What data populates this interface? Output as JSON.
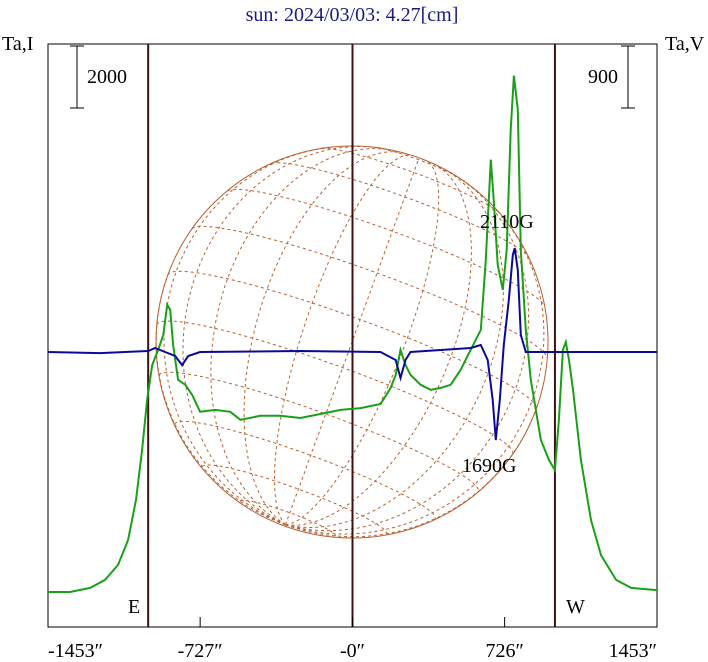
{
  "chart_data": {
    "type": "line",
    "title": "sun: 2024/03/03: 4.27[cm]",
    "y_label": "Ta,I",
    "y2_label": "Ta,V",
    "xlim": [
      -1453,
      1453
    ],
    "xticks": [
      {
        "value": -1453,
        "label": "-1453″"
      },
      {
        "value": -727,
        "label": "-727″"
      },
      {
        "value": 0,
        "label": "-0″"
      },
      {
        "value": 726,
        "label": "726″"
      },
      {
        "value": 1453,
        "label": "1453″"
      }
    ],
    "ylim": [
      0,
      18800
    ],
    "y2lim": [
      -3990,
      4470
    ],
    "scale_bar": 2000,
    "scale_bar2": 900,
    "vlines": [
      -975,
      0,
      966
    ],
    "limb_labels": [
      "E",
      "W"
    ],
    "annotations": [
      "2110G",
      "1690G"
    ],
    "series": [
      {
        "color": "#18a018",
        "x": [
          -1453,
          -1348,
          -1252,
          -1181,
          -1119,
          -1071,
          -1033,
          -1004,
          -980,
          -956,
          -927,
          -903,
          -884,
          -870,
          -856,
          -832,
          -798,
          -765,
          -727,
          -655,
          -583,
          -535,
          -440,
          -344,
          -249,
          -153,
          -57,
          38,
          134,
          182,
          206,
          229,
          253,
          277,
          325,
          373,
          421,
          468,
          516,
          564,
          612,
          636,
          660,
          674,
          693,
          717,
          736,
          755,
          770,
          789,
          803,
          827,
          851,
          899,
          937,
          966,
          985,
          1004,
          1018,
          1033,
          1052,
          1090,
          1138,
          1186,
          1258,
          1330,
          1453
        ],
        "values": [
          1130,
          1130,
          1260,
          1520,
          2000,
          2810,
          4100,
          5710,
          7320,
          8450,
          8940,
          9420,
          10390,
          10230,
          9100,
          7970,
          7810,
          7480,
          6940,
          7000,
          6940,
          6680,
          6810,
          6810,
          6740,
          6870,
          7000,
          7060,
          7190,
          7710,
          8130,
          8940,
          8450,
          8130,
          7810,
          7650,
          7710,
          7810,
          8290,
          8940,
          9580,
          11840,
          15070,
          13780,
          11680,
          10870,
          12160,
          16030,
          17780,
          16680,
          12160,
          9580,
          7970,
          6030,
          5390,
          5060,
          6680,
          8940,
          9190,
          8610,
          7650,
          5390,
          3450,
          2320,
          1520,
          1260,
          1190
        ]
      },
      {
        "color": "#0a0a9a",
        "axis": "y2",
        "x": [
          -1453,
          -1205,
          -975,
          -942,
          -894,
          -846,
          -813,
          -784,
          -727,
          -249,
          134,
          206,
          229,
          253,
          277,
          421,
          564,
          612,
          645,
          669,
          684,
          703,
          722,
          746,
          765,
          774,
          789,
          803,
          827,
          966,
          1453
        ],
        "values": [
          0,
          -15,
          15,
          58,
          0,
          -58,
          -189,
          -58,
          0,
          15,
          0,
          -116,
          -377,
          -116,
          0,
          29,
          58,
          102,
          -116,
          -696,
          -1276,
          -696,
          102,
          754,
          1407,
          1508,
          1189,
          247,
          0,
          0,
          0
        ]
      }
    ]
  }
}
